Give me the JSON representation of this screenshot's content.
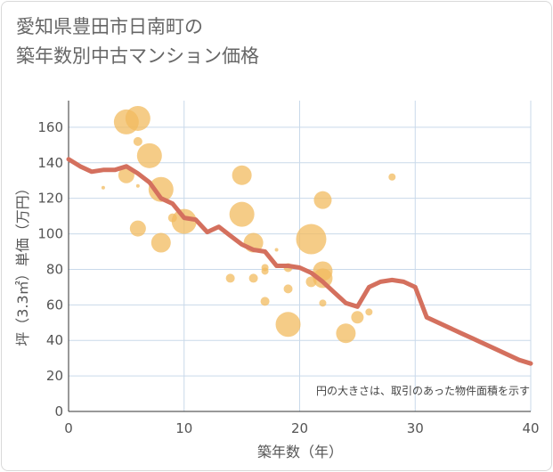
{
  "chart_data": {
    "type": "scatter",
    "title": "愛知県豊田市日南町の\n築年数別中古マンション価格",
    "xlabel": "築年数（年）",
    "ylabel": "坪（3.3㎡）単価（万円）",
    "xlim": [
      0,
      40
    ],
    "ylim": [
      0,
      175
    ],
    "xticks": [
      0,
      10,
      20,
      30,
      40
    ],
    "yticks": [
      0,
      20,
      40,
      60,
      80,
      100,
      120,
      140,
      160
    ],
    "grid": true,
    "note": "円の大きさは、取引のあった物件面積を示す",
    "colors": {
      "bubble": "#f2bb5f",
      "line": "#d4705e",
      "grid": "#c9d9ea",
      "text": "#555555"
    },
    "scatter_series": {
      "points": [
        {
          "x": 5,
          "y": 163,
          "size": 14
        },
        {
          "x": 6,
          "y": 165,
          "size": 14
        },
        {
          "x": 6,
          "y": 152,
          "size": 5
        },
        {
          "x": 7,
          "y": 144,
          "size": 14
        },
        {
          "x": 5,
          "y": 133,
          "size": 9
        },
        {
          "x": 3,
          "y": 126,
          "size": 2
        },
        {
          "x": 6,
          "y": 127,
          "size": 2
        },
        {
          "x": 8,
          "y": 125,
          "size": 14
        },
        {
          "x": 9,
          "y": 109,
          "size": 5
        },
        {
          "x": 6,
          "y": 103,
          "size": 9
        },
        {
          "x": 10,
          "y": 107,
          "size": 14
        },
        {
          "x": 8,
          "y": 95,
          "size": 11
        },
        {
          "x": 15,
          "y": 133,
          "size": 11
        },
        {
          "x": 15,
          "y": 111,
          "size": 14
        },
        {
          "x": 16,
          "y": 95,
          "size": 11
        },
        {
          "x": 17,
          "y": 81,
          "size": 4
        },
        {
          "x": 17,
          "y": 79,
          "size": 4
        },
        {
          "x": 14,
          "y": 75,
          "size": 5
        },
        {
          "x": 16,
          "y": 75,
          "size": 5
        },
        {
          "x": 18,
          "y": 91,
          "size": 2
        },
        {
          "x": 17,
          "y": 62,
          "size": 5
        },
        {
          "x": 19,
          "y": 81,
          "size": 5
        },
        {
          "x": 19,
          "y": 69,
          "size": 5
        },
        {
          "x": 19,
          "y": 49,
          "size": 14
        },
        {
          "x": 21,
          "y": 97,
          "size": 17
        },
        {
          "x": 21,
          "y": 73,
          "size": 6
        },
        {
          "x": 22,
          "y": 119,
          "size": 10
        },
        {
          "x": 22,
          "y": 79,
          "size": 11
        },
        {
          "x": 22,
          "y": 75,
          "size": 11
        },
        {
          "x": 22,
          "y": 61,
          "size": 4
        },
        {
          "x": 24,
          "y": 44,
          "size": 11
        },
        {
          "x": 25,
          "y": 53,
          "size": 7
        },
        {
          "x": 26,
          "y": 56,
          "size": 4
        },
        {
          "x": 28,
          "y": 132,
          "size": 4
        }
      ]
    },
    "line_series": {
      "x": [
        0,
        1,
        2,
        3,
        4,
        5,
        6,
        7,
        8,
        9,
        10,
        11,
        12,
        13,
        14,
        15,
        16,
        17,
        18,
        19,
        20,
        21,
        22,
        23,
        24,
        25,
        26,
        27,
        28,
        29,
        30,
        31,
        32,
        33,
        34,
        35,
        36,
        37,
        38,
        39,
        40
      ],
      "y": [
        142,
        138,
        135,
        136,
        136,
        138,
        134,
        129,
        120,
        117,
        109,
        108,
        101,
        104,
        99,
        94,
        91,
        90,
        82,
        82,
        81,
        78,
        73,
        67,
        61,
        59,
        70,
        73,
        74,
        73,
        70,
        53,
        50,
        47,
        44,
        41,
        38,
        35,
        32,
        29,
        27
      ]
    }
  }
}
